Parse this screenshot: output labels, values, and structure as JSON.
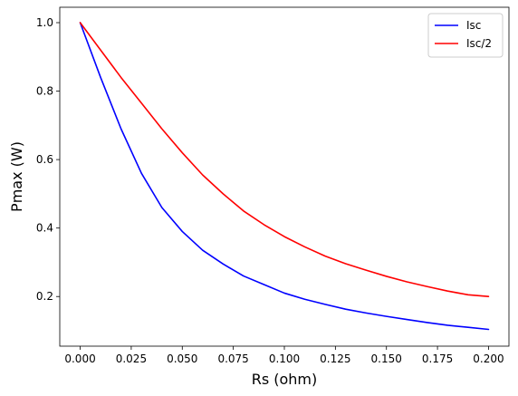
{
  "chart_data": {
    "type": "line",
    "title": "",
    "xlabel": "Rs (ohm)",
    "ylabel": "Pmax (W)",
    "xlim": [
      -0.01,
      0.21
    ],
    "ylim": [
      0.055,
      1.045
    ],
    "xticks": [
      0.0,
      0.025,
      0.05,
      0.075,
      0.1,
      0.125,
      0.15,
      0.175,
      0.2
    ],
    "xtick_labels": [
      "0.000",
      "0.025",
      "0.050",
      "0.075",
      "0.100",
      "0.125",
      "0.150",
      "0.175",
      "0.200"
    ],
    "yticks": [
      0.2,
      0.4,
      0.6,
      0.8,
      1.0
    ],
    "ytick_labels": [
      "0.2",
      "0.4",
      "0.6",
      "0.8",
      "1.0"
    ],
    "grid": false,
    "legend_position": "top-right",
    "series": [
      {
        "name": "Isc",
        "color": "#0000ff",
        "x": [
          0.0,
          0.01,
          0.02,
          0.03,
          0.04,
          0.05,
          0.06,
          0.07,
          0.08,
          0.09,
          0.1,
          0.11,
          0.12,
          0.13,
          0.14,
          0.15,
          0.16,
          0.17,
          0.18,
          0.19,
          0.2
        ],
        "y": [
          1.0,
          0.84,
          0.69,
          0.56,
          0.46,
          0.39,
          0.335,
          0.295,
          0.26,
          0.235,
          0.21,
          0.192,
          0.177,
          0.163,
          0.152,
          0.142,
          0.133,
          0.124,
          0.116,
          0.11,
          0.104
        ]
      },
      {
        "name": "Isc/2",
        "color": "#ff0000",
        "x": [
          0.0,
          0.01,
          0.02,
          0.03,
          0.04,
          0.05,
          0.06,
          0.07,
          0.08,
          0.09,
          0.1,
          0.11,
          0.12,
          0.13,
          0.14,
          0.15,
          0.16,
          0.17,
          0.18,
          0.19,
          0.2
        ],
        "y": [
          1.0,
          0.92,
          0.84,
          0.765,
          0.69,
          0.62,
          0.555,
          0.5,
          0.45,
          0.41,
          0.375,
          0.345,
          0.318,
          0.296,
          0.277,
          0.259,
          0.243,
          0.229,
          0.216,
          0.205,
          0.2
        ]
      }
    ]
  }
}
